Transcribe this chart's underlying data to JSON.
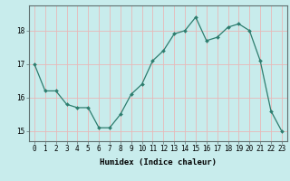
{
  "x": [
    0,
    1,
    2,
    3,
    4,
    5,
    6,
    7,
    8,
    9,
    10,
    11,
    12,
    13,
    14,
    15,
    16,
    17,
    18,
    19,
    20,
    21,
    22,
    23
  ],
  "y": [
    17.0,
    16.2,
    16.2,
    15.8,
    15.7,
    15.7,
    15.1,
    15.1,
    15.5,
    16.1,
    16.4,
    17.1,
    17.4,
    17.9,
    18.0,
    18.4,
    17.7,
    17.8,
    18.1,
    18.2,
    18.0,
    17.1,
    15.6,
    15.0
  ],
  "xlabel": "Humidex (Indice chaleur)",
  "bg_color": "#c8ecec",
  "grid_color": "#e8b8b8",
  "line_color": "#2d7d6e",
  "marker_color": "#2d7d6e",
  "xlim": [
    -0.5,
    23.5
  ],
  "ylim": [
    14.7,
    18.75
  ],
  "yticks": [
    15,
    16,
    17,
    18
  ],
  "xticks": [
    0,
    1,
    2,
    3,
    4,
    5,
    6,
    7,
    8,
    9,
    10,
    11,
    12,
    13,
    14,
    15,
    16,
    17,
    18,
    19,
    20,
    21,
    22,
    23
  ],
  "tick_fontsize": 5.5,
  "xlabel_fontsize": 6.5,
  "line_width": 0.9,
  "marker_size": 2.0
}
